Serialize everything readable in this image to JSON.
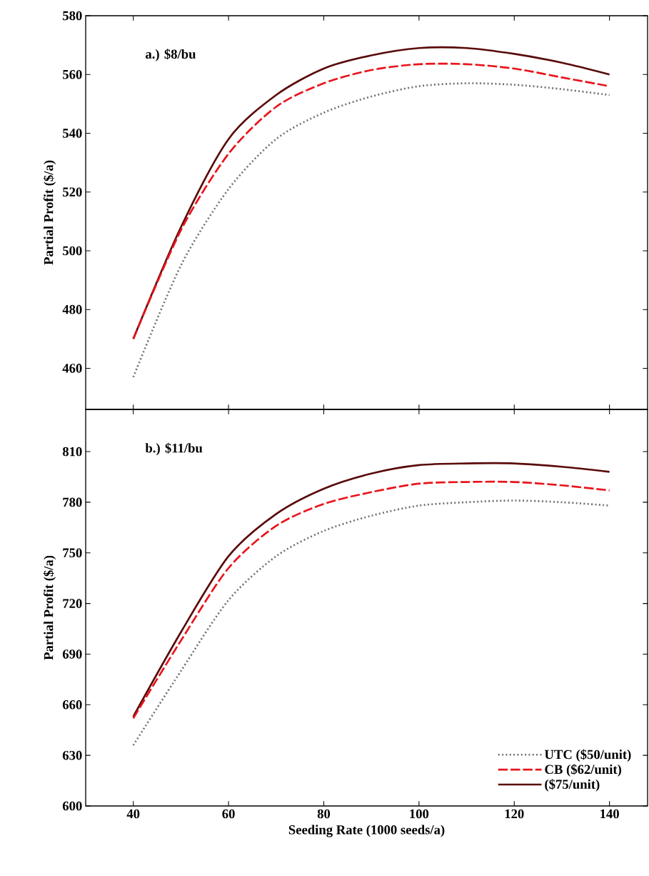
{
  "chart_data": [
    {
      "type": "line",
      "xlim": [
        30,
        148
      ],
      "ylim": [
        446,
        580
      ],
      "xticks": [
        40,
        60,
        80,
        100,
        120,
        140
      ],
      "yticks": [
        460,
        480,
        500,
        520,
        540,
        560,
        580
      ],
      "ylabel": "Partial Profit ($/a)",
      "tick_labels": "y",
      "annotations": [
        "a.) $8/bu"
      ],
      "x": [
        40,
        50,
        60,
        70,
        80,
        90,
        100,
        110,
        120,
        130,
        140
      ],
      "legend": false,
      "marker": "none",
      "series": [
        {
          "color": "#707070",
          "line_style": "dotted",
          "values": [
            457,
            495,
            521,
            538,
            547,
            552.5,
            556,
            557,
            556.5,
            555,
            553
          ]
        },
        {
          "color": "#e8141c",
          "line_style": "dashed",
          "values": [
            470,
            507,
            533,
            549,
            557,
            561.5,
            563.5,
            563.5,
            562,
            559,
            556
          ]
        },
        {
          "color": "#5a0a0a",
          "line_style": "solid",
          "values": [
            470,
            508,
            538,
            553,
            562,
            566.5,
            569,
            569,
            567,
            564,
            560
          ]
        }
      ]
    },
    {
      "type": "line",
      "xlim": [
        30,
        148
      ],
      "ylim": [
        600,
        835
      ],
      "xticks": [
        40,
        60,
        80,
        100,
        120,
        140
      ],
      "yticks": [
        600,
        630,
        660,
        690,
        720,
        750,
        780,
        810
      ],
      "xlabel": "Seeding Rate (1000 seeds/a)",
      "ylabel": "Partial Profit ($/a)",
      "annotations": [
        "b.) $11/bu"
      ],
      "x": [
        40,
        50,
        60,
        70,
        80,
        90,
        100,
        110,
        120,
        130,
        140
      ],
      "legend": "bottom right",
      "marker": "none",
      "series": [
        {
          "name": "UTC ($50/unit)",
          "color": "#707070",
          "line_style": "dotted",
          "values": [
            636,
            680,
            722,
            748,
            763,
            772,
            778,
            780,
            781,
            780,
            778
          ]
        },
        {
          "name": "CB ($62/unit)",
          "color": "#e8141c",
          "line_style": "dashed",
          "values": [
            652,
            698,
            741,
            766,
            779,
            786,
            791,
            792,
            792,
            790,
            787
          ]
        },
        {
          "name": "($75/unit)",
          "color": "#5a0a0a",
          "line_style": "solid",
          "values": [
            653,
            703,
            748,
            773,
            788,
            797,
            802,
            803,
            803,
            801,
            798
          ]
        }
      ]
    }
  ]
}
